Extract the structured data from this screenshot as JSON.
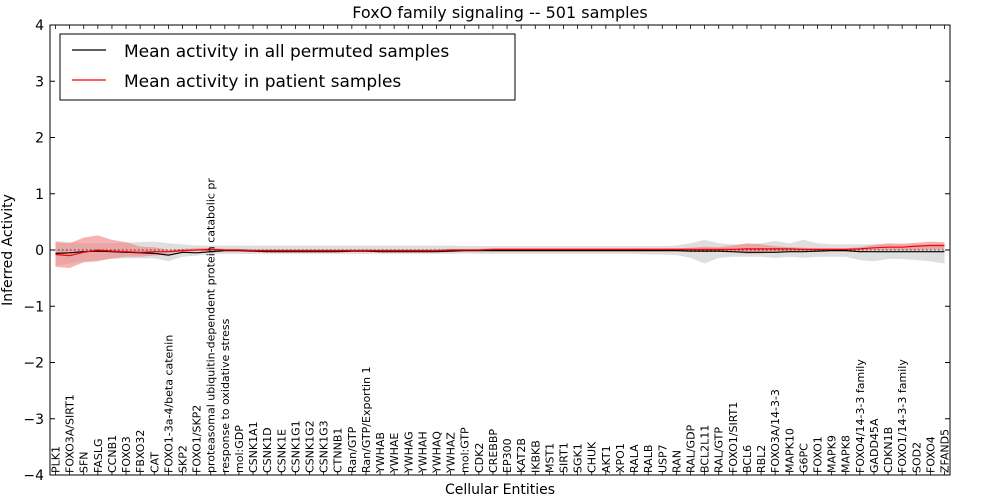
{
  "chart_data": {
    "type": "line",
    "title": "FoxO family signaling -- 501 samples",
    "xlabel": "Cellular Entities",
    "ylabel": "Inferred Activity",
    "ylim": [
      -4,
      4
    ],
    "yticks": [
      -4,
      -3,
      -2,
      -1,
      0,
      1,
      2,
      3,
      4
    ],
    "ytick_labels": [
      "−4",
      "−3",
      "−2",
      "−1",
      "0",
      "1",
      "2",
      "3",
      "4"
    ],
    "legend_position": "top-left",
    "colors": {
      "permuted": "#000000",
      "patient": "#ff0000",
      "band_permuted": "#c8c8c8",
      "band_patient": "#f08080"
    },
    "categories": [
      "PLK1",
      "FOXO3A/SIRT1",
      "SFN",
      "FASLG",
      "CCNB1",
      "FOXO3",
      "FBXO32",
      "CAT",
      "FOXO1-3a-4/beta catenin",
      "SKP2",
      "FOXO1/SKP2",
      "proteasomal ubiquitin-dependent protein catabolic pr",
      "response to oxidative stress",
      "mol:GDP",
      "CSNK1A1",
      "CSNK1D",
      "CSNK1E",
      "CSNK1G1",
      "CSNK1G2",
      "CSNK1G3",
      "CTNNB1",
      "Ran/GTP",
      "Ran/GTP/Exportin 1",
      "YWHAB",
      "YWHAE",
      "YWHAG",
      "YWHAH",
      "YWHAQ",
      "YWHAZ",
      "mol:GTP",
      "CDK2",
      "CREBBP",
      "EP300",
      "KAT2B",
      "IKBKB",
      "MST1",
      "SIRT1",
      "SGK1",
      "CHUK",
      "AKT1",
      "XPO1",
      "RALA",
      "RALB",
      "USP7",
      "RAN",
      "RAL/GDP",
      "BCL2L11",
      "RAL/GTP",
      "FOXO1/SIRT1",
      "BCL6",
      "RBL2",
      "FOXO3A/14-3-3",
      "MAPK10",
      "G6PC",
      "FOXO1",
      "MAPK9",
      "MAPK8",
      "FOXO4/14-3-3 family",
      "GADD45A",
      "CDKN1B",
      "FOXO1/14-3-3 family",
      "SOD2",
      "FOXO4",
      "ZFAND5"
    ],
    "series": [
      {
        "name": "Mean activity in all permuted samples",
        "values": [
          -0.06,
          -0.05,
          -0.03,
          -0.02,
          -0.03,
          -0.04,
          -0.05,
          -0.06,
          -0.09,
          -0.04,
          -0.05,
          -0.03,
          -0.01,
          -0.01,
          -0.02,
          -0.03,
          -0.03,
          -0.03,
          -0.03,
          -0.03,
          -0.03,
          -0.02,
          -0.02,
          -0.03,
          -0.03,
          -0.03,
          -0.03,
          -0.03,
          -0.02,
          -0.01,
          -0.01,
          -0.01,
          -0.01,
          -0.01,
          -0.01,
          -0.01,
          -0.01,
          -0.01,
          -0.01,
          -0.01,
          -0.01,
          -0.01,
          -0.01,
          -0.01,
          -0.01,
          -0.02,
          -0.02,
          -0.02,
          -0.03,
          -0.04,
          -0.04,
          -0.04,
          -0.03,
          -0.03,
          -0.02,
          -0.01,
          -0.01,
          -0.03,
          -0.03,
          -0.03,
          -0.03,
          -0.03,
          -0.03,
          -0.03
        ],
        "lower": [
          -0.28,
          -0.24,
          -0.2,
          -0.18,
          -0.16,
          -0.15,
          -0.15,
          -0.15,
          -0.2,
          -0.12,
          -0.1,
          -0.07,
          -0.07,
          -0.07,
          -0.07,
          -0.07,
          -0.07,
          -0.07,
          -0.07,
          -0.07,
          -0.07,
          -0.07,
          -0.07,
          -0.07,
          -0.07,
          -0.07,
          -0.07,
          -0.07,
          -0.07,
          -0.06,
          -0.07,
          -0.07,
          -0.07,
          -0.07,
          -0.07,
          -0.07,
          -0.07,
          -0.07,
          -0.07,
          -0.07,
          -0.07,
          -0.07,
          -0.08,
          -0.08,
          -0.09,
          -0.14,
          -0.24,
          -0.14,
          -0.12,
          -0.12,
          -0.12,
          -0.14,
          -0.12,
          -0.14,
          -0.12,
          -0.12,
          -0.12,
          -0.18,
          -0.2,
          -0.16,
          -0.16,
          -0.18,
          -0.2,
          -0.24
        ],
        "upper": [
          0.16,
          0.14,
          0.12,
          0.12,
          0.12,
          0.13,
          0.14,
          0.15,
          0.12,
          0.1,
          0.08,
          0.08,
          0.08,
          0.08,
          0.08,
          0.08,
          0.08,
          0.08,
          0.08,
          0.08,
          0.08,
          0.08,
          0.08,
          0.08,
          0.08,
          0.08,
          0.08,
          0.08,
          0.08,
          0.07,
          0.07,
          0.07,
          0.07,
          0.07,
          0.07,
          0.07,
          0.07,
          0.07,
          0.07,
          0.07,
          0.07,
          0.07,
          0.07,
          0.07,
          0.08,
          0.12,
          0.18,
          0.12,
          0.1,
          0.1,
          0.12,
          0.16,
          0.12,
          0.18,
          0.12,
          0.1,
          0.1,
          0.1,
          0.1,
          0.1,
          0.1,
          0.1,
          0.1,
          0.1
        ]
      },
      {
        "name": "Mean activity in patient samples",
        "values": [
          -0.08,
          -0.1,
          -0.04,
          0.0,
          -0.02,
          -0.03,
          -0.04,
          -0.03,
          -0.03,
          -0.01,
          0.0,
          0.01,
          0.0,
          0.0,
          -0.01,
          -0.01,
          -0.01,
          -0.01,
          -0.01,
          -0.01,
          -0.01,
          -0.01,
          -0.01,
          -0.01,
          -0.01,
          -0.01,
          -0.01,
          -0.01,
          0.0,
          0.0,
          0.0,
          0.01,
          0.01,
          0.01,
          0.01,
          0.01,
          0.01,
          0.01,
          0.01,
          0.01,
          0.01,
          0.01,
          0.01,
          0.01,
          0.01,
          0.01,
          0.01,
          0.01,
          0.01,
          0.02,
          0.02,
          0.02,
          0.02,
          0.01,
          0.01,
          0.01,
          0.01,
          0.02,
          0.04,
          0.05,
          0.05,
          0.07,
          0.08,
          0.08
        ],
        "lower": [
          -0.3,
          -0.32,
          -0.22,
          -0.2,
          -0.15,
          -0.12,
          -0.12,
          -0.1,
          -0.06,
          -0.03,
          -0.02,
          -0.02,
          -0.02,
          -0.02,
          -0.03,
          -0.03,
          -0.03,
          -0.03,
          -0.03,
          -0.03,
          -0.03,
          -0.03,
          -0.03,
          -0.03,
          -0.03,
          -0.03,
          -0.03,
          -0.03,
          -0.02,
          -0.02,
          -0.02,
          -0.01,
          -0.01,
          -0.01,
          -0.01,
          -0.01,
          -0.01,
          -0.01,
          -0.01,
          -0.01,
          -0.01,
          -0.01,
          -0.01,
          -0.01,
          -0.01,
          -0.02,
          -0.04,
          -0.03,
          -0.04,
          -0.07,
          -0.06,
          -0.04,
          -0.02,
          -0.02,
          -0.01,
          -0.01,
          -0.01,
          -0.01,
          0.0,
          0.0,
          0.0,
          0.0,
          0.01,
          0.01
        ],
        "upper": [
          0.14,
          0.12,
          0.22,
          0.26,
          0.18,
          0.14,
          0.06,
          0.05,
          0.0,
          0.02,
          0.03,
          0.04,
          0.02,
          0.02,
          0.01,
          0.01,
          0.01,
          0.01,
          0.01,
          0.01,
          0.01,
          0.01,
          0.01,
          0.01,
          0.01,
          0.01,
          0.01,
          0.01,
          0.02,
          0.02,
          0.02,
          0.03,
          0.03,
          0.03,
          0.03,
          0.03,
          0.03,
          0.03,
          0.03,
          0.03,
          0.03,
          0.03,
          0.03,
          0.03,
          0.03,
          0.04,
          0.06,
          0.05,
          0.08,
          0.12,
          0.1,
          0.07,
          0.05,
          0.04,
          0.03,
          0.03,
          0.03,
          0.05,
          0.09,
          0.12,
          0.11,
          0.13,
          0.15,
          0.14
        ]
      }
    ]
  }
}
